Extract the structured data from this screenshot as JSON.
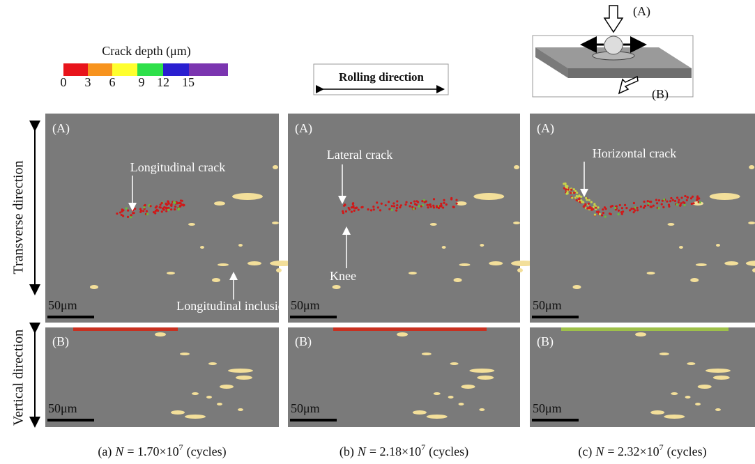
{
  "legend": {
    "title": "Crack depth (μm)",
    "ticks": [
      0,
      3,
      6,
      9,
      12,
      15
    ]
  },
  "rolling_direction": "Rolling direction",
  "schematic": {
    "labels": [
      "(A)",
      "(B)"
    ]
  },
  "row_labels": [
    "Transverse direction",
    "Vertical direction"
  ],
  "panels": [
    {
      "top": {
        "label": "(A)",
        "scale": "50μm",
        "annotations": [
          "Longitudinal crack",
          "Longitudinal inclusion"
        ]
      },
      "bottom": {
        "label": "(B)",
        "scale": "50μm"
      },
      "caption": {
        "label": "(a)",
        "variable": "N",
        "value": "= 1.70×10",
        "exponent": "7",
        "unit": "(cycles)"
      }
    },
    {
      "top": {
        "label": "(A)",
        "scale": "50μm",
        "annotations": [
          "Lateral crack",
          "Knee"
        ]
      },
      "bottom": {
        "label": "(B)",
        "scale": "50μm"
      },
      "caption": {
        "label": "(b)",
        "variable": "N",
        "value": "= 2.18×10",
        "exponent": "7",
        "unit": "(cycles)"
      }
    },
    {
      "top": {
        "label": "(A)",
        "scale": "50μm",
        "annotations": [
          "Horizontal crack"
        ]
      },
      "bottom": {
        "label": "(B)",
        "scale": "50μm"
      },
      "caption": {
        "label": "(c)",
        "variable": "N",
        "value": "= 2.32×10",
        "exponent": "7",
        "unit": "(cycles)"
      }
    }
  ]
}
